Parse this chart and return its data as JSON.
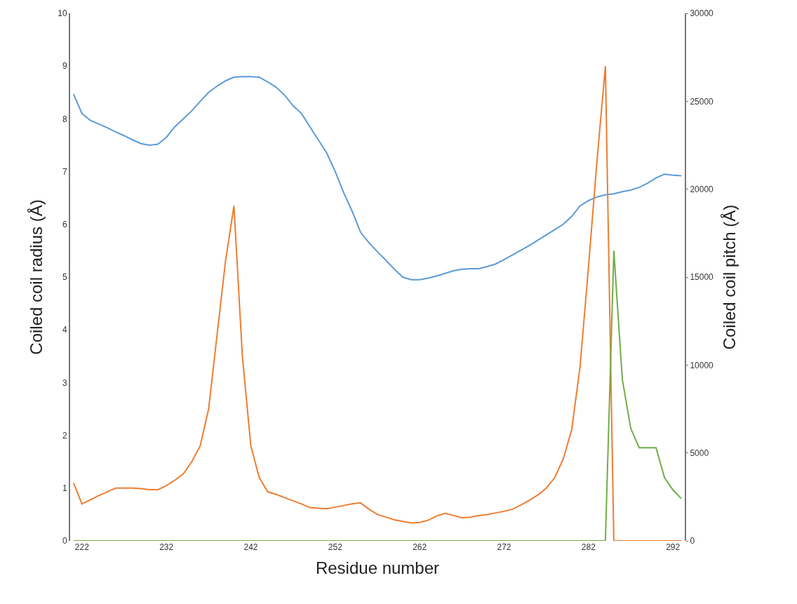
{
  "chart_data": {
    "type": "line",
    "xlabel": "Residue number",
    "ylabel": "Coiled coil radius (Å)",
    "y2label": "Coiled coil pitch (Å)",
    "x": [
      221,
      222,
      223,
      224,
      225,
      226,
      227,
      228,
      229,
      230,
      231,
      232,
      233,
      234,
      235,
      236,
      237,
      238,
      239,
      240,
      241,
      242,
      243,
      244,
      245,
      246,
      247,
      248,
      249,
      250,
      251,
      252,
      253,
      254,
      255,
      256,
      257,
      258,
      259,
      260,
      261,
      262,
      263,
      264,
      265,
      266,
      267,
      268,
      269,
      270,
      271,
      272,
      273,
      274,
      275,
      276,
      277,
      278,
      279,
      280,
      281,
      282,
      283,
      284,
      285,
      286,
      287,
      288,
      289,
      290,
      291,
      292,
      293
    ],
    "series": [
      {
        "color": "#5b9bd5",
        "values": [
          8.47,
          8.1,
          7.97,
          7.9,
          7.83,
          7.75,
          7.68,
          7.6,
          7.53,
          7.5,
          7.52,
          7.65,
          7.85,
          8.0,
          8.15,
          8.33,
          8.5,
          8.62,
          8.72,
          8.79,
          8.8,
          8.8,
          8.79,
          8.7,
          8.6,
          8.45,
          8.25,
          8.1,
          7.85,
          7.6,
          7.35,
          7.0,
          6.6,
          6.25,
          5.85,
          5.65,
          5.48,
          5.32,
          5.15,
          5.0,
          4.95,
          4.95,
          4.98,
          5.02,
          5.07,
          5.12,
          5.15,
          5.16,
          5.16,
          5.2,
          5.25,
          5.33,
          5.42,
          5.51,
          5.6,
          5.7,
          5.8,
          5.9,
          6.0,
          6.15,
          6.35,
          6.45,
          6.52,
          6.56,
          6.58,
          6.62,
          6.65,
          6.7,
          6.78,
          6.88,
          6.95,
          6.93,
          6.92
        ]
      },
      {
        "color": "#ed7d31",
        "values": [
          1.1,
          0.7,
          0.78,
          0.86,
          0.93,
          1.0,
          1.0,
          1.0,
          0.99,
          0.97,
          0.97,
          1.05,
          1.15,
          1.27,
          1.5,
          1.8,
          2.5,
          3.9,
          5.3,
          6.35,
          3.5,
          1.8,
          1.2,
          0.93,
          0.88,
          0.82,
          0.76,
          0.7,
          0.63,
          0.62,
          0.61,
          0.64,
          0.67,
          0.7,
          0.72,
          0.6,
          0.5,
          0.45,
          0.4,
          0.37,
          0.34,
          0.35,
          0.39,
          0.47,
          0.52,
          0.48,
          0.44,
          0.45,
          0.48,
          0.5,
          0.53,
          0.56,
          0.6,
          0.68,
          0.77,
          0.87,
          1.0,
          1.2,
          1.55,
          2.1,
          3.3,
          5.2,
          7.2,
          9.0,
          0,
          0,
          0,
          0,
          0,
          0,
          0,
          0,
          0
        ]
      },
      {
        "color": "#70ad47",
        "axis": "y2",
        "values": [
          0,
          0,
          0,
          0,
          0,
          0,
          0,
          0,
          0,
          0,
          0,
          0,
          0,
          0,
          0,
          0,
          0,
          0,
          0,
          0,
          0,
          0,
          0,
          0,
          0,
          0,
          0,
          0,
          0,
          0,
          0,
          0,
          0,
          0,
          0,
          0,
          0,
          0,
          0,
          0,
          0,
          0,
          0,
          0,
          0,
          0,
          0,
          0,
          0,
          0,
          0,
          0,
          0,
          0,
          0,
          0,
          0,
          0,
          0,
          0,
          0,
          0,
          0,
          0,
          16500,
          9200,
          6400,
          5300,
          5300,
          5300,
          3600,
          2900,
          2400
        ]
      }
    ],
    "xlim": [
      220.6,
      293.4
    ],
    "xticks": [
      222,
      232,
      242,
      252,
      262,
      272,
      282,
      292
    ],
    "ylim": [
      0,
      10
    ],
    "yticks": [
      0,
      1,
      2,
      3,
      4,
      5,
      6,
      7,
      8,
      9,
      10
    ],
    "y2lim": [
      0,
      30000
    ],
    "y2ticks": [
      0,
      5000,
      10000,
      15000,
      20000,
      25000,
      30000
    ],
    "grid": false,
    "marker": "none",
    "line_style": "solid"
  }
}
